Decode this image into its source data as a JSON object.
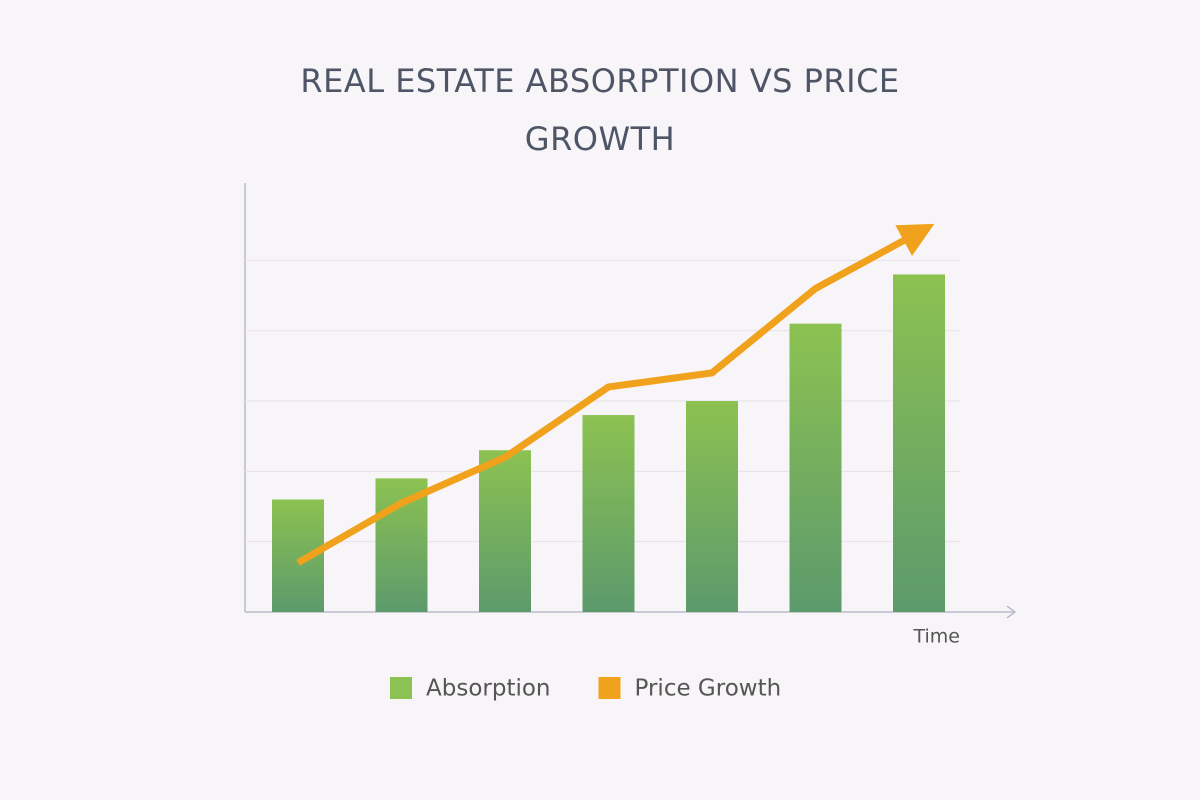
{
  "chart_data": {
    "type": "bar_line",
    "title": "REAL ESTATE ABSORPTION VS PRICE GROWTH",
    "xlabel": "Time",
    "categories": [
      null,
      null,
      null,
      null,
      null,
      null,
      null
    ],
    "series": [
      {
        "name": "Absorption",
        "type": "bar",
        "color": "#7db85a",
        "values": [
          1.6,
          1.9,
          2.3,
          2.8,
          3.0,
          4.1,
          4.8
        ]
      },
      {
        "name": "Price Growth",
        "type": "line",
        "color": "#f0a21c",
        "values": [
          0.7,
          1.55,
          2.2,
          3.2,
          3.4,
          4.6,
          5.4
        ]
      }
    ],
    "ylim": [
      0,
      6.1
    ],
    "yticks": [
      1,
      2,
      3,
      4,
      5
    ],
    "grid": true,
    "legend": "bottom"
  }
}
